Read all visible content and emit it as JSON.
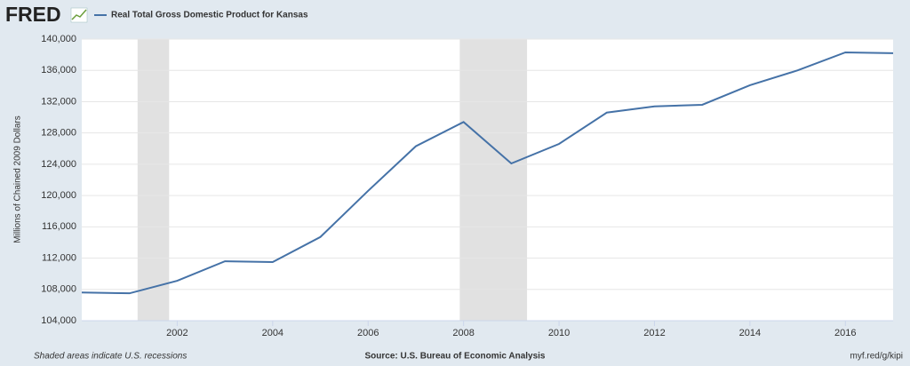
{
  "chart_data": {
    "type": "line",
    "brand": "FRED",
    "ylabel": "Millions of Chained 2009 Dollars",
    "x": [
      2000,
      2001,
      2002,
      2003,
      2004,
      2005,
      2006,
      2007,
      2008,
      2009,
      2010,
      2011,
      2012,
      2013,
      2014,
      2015,
      2016,
      2017
    ],
    "series": [
      {
        "name": "Real Total Gross Domestic Product for Kansas",
        "color": "#4572a7",
        "values": [
          107600,
          107500,
          109100,
          111600,
          111500,
          114700,
          120600,
          126300,
          129400,
          124100,
          126600,
          130600,
          131400,
          131600,
          134100,
          136000,
          138300,
          138200
        ]
      }
    ],
    "recessions": [
      [
        2001.17,
        2001.83
      ],
      [
        2007.92,
        2009.33
      ]
    ],
    "xlim": [
      2000,
      2017
    ],
    "xticks": [
      2002,
      2004,
      2006,
      2008,
      2010,
      2012,
      2014,
      2016
    ],
    "ylim": [
      104000,
      140000
    ],
    "yticks": [
      {
        "value": 104000,
        "label": "104,000"
      },
      {
        "value": 108000,
        "label": "108,000"
      },
      {
        "value": 112000,
        "label": "112,000"
      },
      {
        "value": 116000,
        "label": "116,000"
      },
      {
        "value": 120000,
        "label": "120,000"
      },
      {
        "value": 124000,
        "label": "124,000"
      },
      {
        "value": 128000,
        "label": "128,000"
      },
      {
        "value": 132000,
        "label": "132,000"
      },
      {
        "value": 136000,
        "label": "136,000"
      },
      {
        "value": 140000,
        "label": "140,000"
      }
    ],
    "grid": true,
    "footnote": "Shaded areas indicate U.S. recessions",
    "source": "Source: U.S. Bureau of Economic Analysis",
    "link": "myf.red/g/kipi"
  }
}
